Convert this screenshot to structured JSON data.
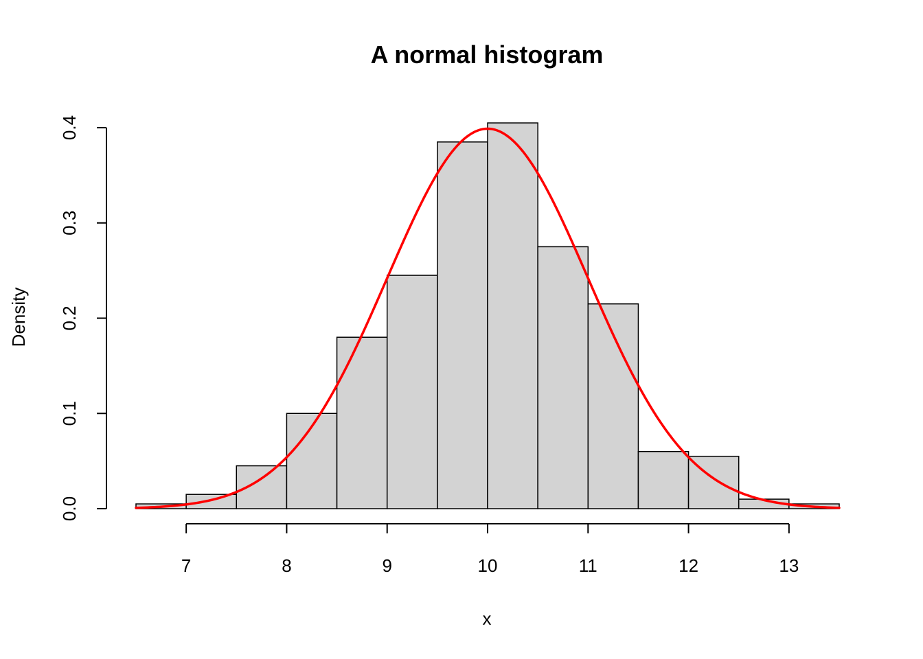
{
  "chart_data": {
    "type": "bar",
    "subtype": "histogram",
    "title": "A normal histogram",
    "xlabel": "x",
    "ylabel": "Density",
    "bins": [
      {
        "start": 6.5,
        "end": 7.0,
        "density": 0.005
      },
      {
        "start": 7.0,
        "end": 7.5,
        "density": 0.015
      },
      {
        "start": 7.5,
        "end": 8.0,
        "density": 0.045
      },
      {
        "start": 8.0,
        "end": 8.5,
        "density": 0.1
      },
      {
        "start": 8.5,
        "end": 9.0,
        "density": 0.18
      },
      {
        "start": 9.0,
        "end": 9.5,
        "density": 0.245
      },
      {
        "start": 9.5,
        "end": 10.0,
        "density": 0.385
      },
      {
        "start": 10.0,
        "end": 10.5,
        "density": 0.405
      },
      {
        "start": 10.5,
        "end": 11.0,
        "density": 0.275
      },
      {
        "start": 11.0,
        "end": 11.5,
        "density": 0.215
      },
      {
        "start": 11.5,
        "end": 12.0,
        "density": 0.06
      },
      {
        "start": 12.0,
        "end": 12.5,
        "density": 0.055
      },
      {
        "start": 12.5,
        "end": 13.0,
        "density": 0.01
      },
      {
        "start": 13.0,
        "end": 13.5,
        "density": 0.005
      }
    ],
    "density_curve": {
      "distribution": "normal",
      "mean": 10,
      "sd": 1,
      "x_range": [
        6.5,
        13.5
      ]
    },
    "xlim": [
      6.5,
      13.5
    ],
    "ylim": [
      0,
      0.4
    ],
    "x_ticks": [
      7,
      8,
      9,
      10,
      11,
      12,
      13
    ],
    "x_tick_labels": [
      "7",
      "8",
      "9",
      "10",
      "11",
      "12",
      "13"
    ],
    "y_ticks": [
      0.0,
      0.1,
      0.2,
      0.3,
      0.4
    ],
    "y_tick_labels": [
      "0.0",
      "0.1",
      "0.2",
      "0.3",
      "0.4"
    ],
    "grid": false,
    "colors": {
      "bar_fill": "#d3d3d3",
      "bar_stroke": "#000000",
      "curve": "#ff0000"
    }
  }
}
